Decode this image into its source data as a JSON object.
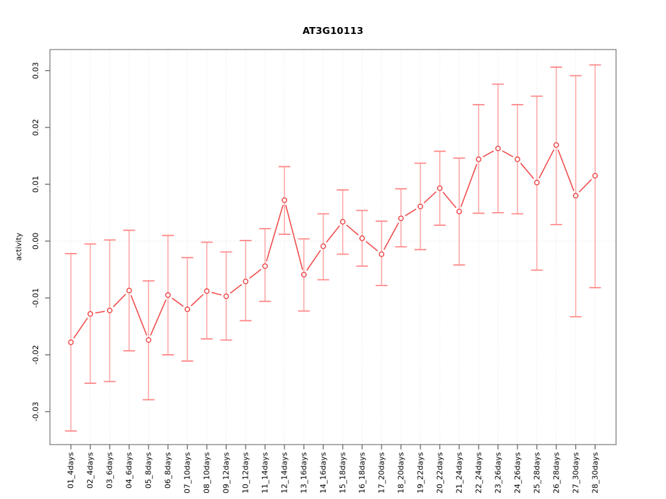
{
  "chart_data": {
    "type": "line",
    "title": "AT3G10113",
    "ylabel": "activity",
    "xlabel": "",
    "legend": "none",
    "grid": "dotted vertical gridline at each category; dotted horizontal line at y=0",
    "marker": "open-circle",
    "error_bars": true,
    "ylim": [
      -0.0358,
      0.0337
    ],
    "yticks": {
      "values": [
        -0.03,
        -0.02,
        -0.01,
        0,
        0.01,
        0.02,
        0.03
      ],
      "labels": [
        "-0.03",
        "-0.02",
        "-0.01",
        "0.00",
        "0.01",
        "0.02",
        "0.03"
      ]
    },
    "categories": [
      "01_4days",
      "02_4days",
      "03_6days",
      "04_6days",
      "05_8days",
      "06_8days",
      "07_10days",
      "08_10days",
      "09_12days",
      "10_12days",
      "11_14days",
      "12_14days",
      "13_16days",
      "14_16days",
      "15_18days",
      "16_18days",
      "17_20days",
      "18_20days",
      "19_22days",
      "20_22days",
      "21_24days",
      "22_24days",
      "23_26days",
      "24_26days",
      "25_28days",
      "26_28days",
      "27_30days",
      "28_30days"
    ],
    "series": [
      {
        "name": "AT3G10113",
        "values": [
          -0.0178,
          -0.0128,
          -0.0122,
          -0.0087,
          -0.0174,
          -0.0095,
          -0.012,
          -0.0088,
          -0.0097,
          -0.0071,
          -0.0044,
          0.0072,
          -0.0059,
          -0.0009,
          0.0034,
          0.0005,
          -0.0023,
          0.004,
          0.0061,
          0.0093,
          0.0052,
          0.0144,
          0.0163,
          0.0144,
          0.0103,
          0.0169,
          0.008,
          0.0115
        ],
        "upper": [
          -0.0022,
          -0.0005,
          0.0002,
          0.0019,
          -0.007,
          0.001,
          -0.0029,
          -0.0002,
          -0.0019,
          0.0001,
          0.0022,
          0.0131,
          0.0004,
          0.0048,
          0.009,
          0.0054,
          0.0035,
          0.0092,
          0.0137,
          0.0158,
          0.0146,
          0.024,
          0.0276,
          0.024,
          0.0255,
          0.0306,
          0.0291,
          0.031
        ],
        "lower": [
          -0.0334,
          -0.025,
          -0.0247,
          -0.0193,
          -0.0279,
          -0.02,
          -0.0211,
          -0.0172,
          -0.0174,
          -0.014,
          -0.0106,
          0.0012,
          -0.0123,
          -0.0068,
          -0.0023,
          -0.0044,
          -0.0078,
          -0.001,
          -0.0015,
          0.0028,
          -0.0042,
          0.0049,
          0.005,
          0.0048,
          -0.0051,
          0.0029,
          -0.0133,
          -0.0082
        ]
      }
    ],
    "colors": {
      "line": "#f04c4c",
      "marker": "#ee4444",
      "error_bar": "#ffb2b2",
      "error_cap": "#ff8a8a",
      "grid": "#dedede",
      "zero_line": "#dadada",
      "frame": "#919191",
      "tick": "#666666",
      "text": "#000000",
      "background": "#ffffff"
    }
  }
}
